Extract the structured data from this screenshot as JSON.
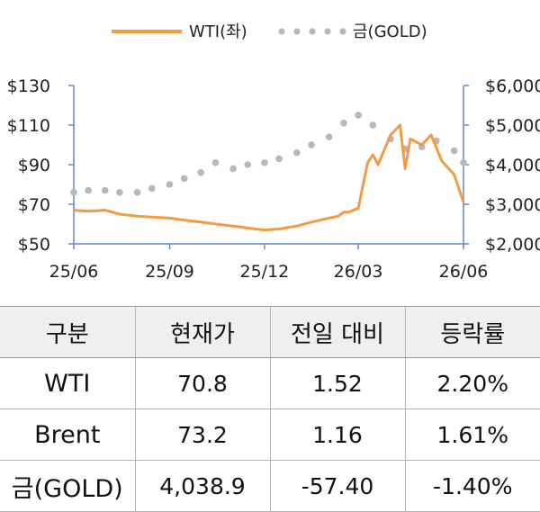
{
  "chart_data": {
    "type": "line",
    "legend": [
      "WTI(좌)",
      "금(GOLD)"
    ],
    "legend_position": "top",
    "x_ticks": [
      "25/06",
      "25/09",
      "25/12",
      "26/03",
      "26/06"
    ],
    "y_left": {
      "ticks": [
        "$50",
        "$70",
        "$90",
        "$110",
        "$130"
      ],
      "range": [
        50,
        130
      ]
    },
    "y_right": {
      "ticks": [
        "$2,000",
        "$3,000",
        "$4,000",
        "$5,000",
        "$6,000"
      ],
      "range": [
        2000,
        6000
      ]
    },
    "colors": {
      "wti": "#f39a45",
      "gold": "#b8b8b8",
      "axis": "#5b8cc9"
    },
    "series": [
      {
        "name": "WTI(좌)",
        "style": "line",
        "x": [
          "25/06/01",
          "25/06/15",
          "25/07/01",
          "25/07/15",
          "25/08/01",
          "25/08/15",
          "25/09/01",
          "25/09/15",
          "25/10/01",
          "25/10/15",
          "25/11/01",
          "25/11/15",
          "25/12/01",
          "25/12/15",
          "26/01/01",
          "26/01/15",
          "26/02/01",
          "26/02/10",
          "26/02/15",
          "26/02/20",
          "26/03/01",
          "26/03/10",
          "26/03/15",
          "26/03/20",
          "26/04/01",
          "26/04/10",
          "26/04/15",
          "26/04/20",
          "26/05/01",
          "26/05/10",
          "26/05/20",
          "26/06/01",
          "26/06/10"
        ],
        "values": [
          67,
          66.5,
          67,
          65,
          64,
          63.5,
          63,
          62,
          61,
          60,
          59,
          58,
          57,
          57.5,
          59,
          61,
          63,
          64,
          66,
          66,
          68,
          91,
          95,
          90,
          105,
          110,
          88,
          103,
          100,
          105,
          92,
          85,
          71
        ]
      },
      {
        "name": "금(GOLD)",
        "style": "dots",
        "x": [
          "25/06/01",
          "25/06/15",
          "25/07/01",
          "25/07/15",
          "25/08/01",
          "25/08/15",
          "25/09/01",
          "25/09/15",
          "25/10/01",
          "25/10/15",
          "25/11/01",
          "25/11/15",
          "25/12/01",
          "25/12/15",
          "26/01/01",
          "26/01/15",
          "26/02/01",
          "26/02/15",
          "26/03/01",
          "26/03/15",
          "26/04/01",
          "26/04/15",
          "26/05/01",
          "26/05/15",
          "26/06/01",
          "26/06/10"
        ],
        "values": [
          3300,
          3350,
          3350,
          3300,
          3300,
          3400,
          3500,
          3650,
          3800,
          4050,
          3900,
          4000,
          4050,
          4150,
          4300,
          4500,
          4700,
          5050,
          5250,
          5000,
          4650,
          4400,
          4450,
          4600,
          4350,
          4050
        ]
      }
    ]
  },
  "table": {
    "headers": [
      "구분",
      "현재가",
      "전일 대비",
      "등락률"
    ],
    "rows": [
      [
        "WTI",
        "70.8",
        "1.52",
        "2.20%"
      ],
      [
        "Brent",
        "73.2",
        "1.16",
        "1.61%"
      ],
      [
        "금(GOLD)",
        "4,038.9",
        "-57.40",
        "-1.40%"
      ]
    ]
  }
}
